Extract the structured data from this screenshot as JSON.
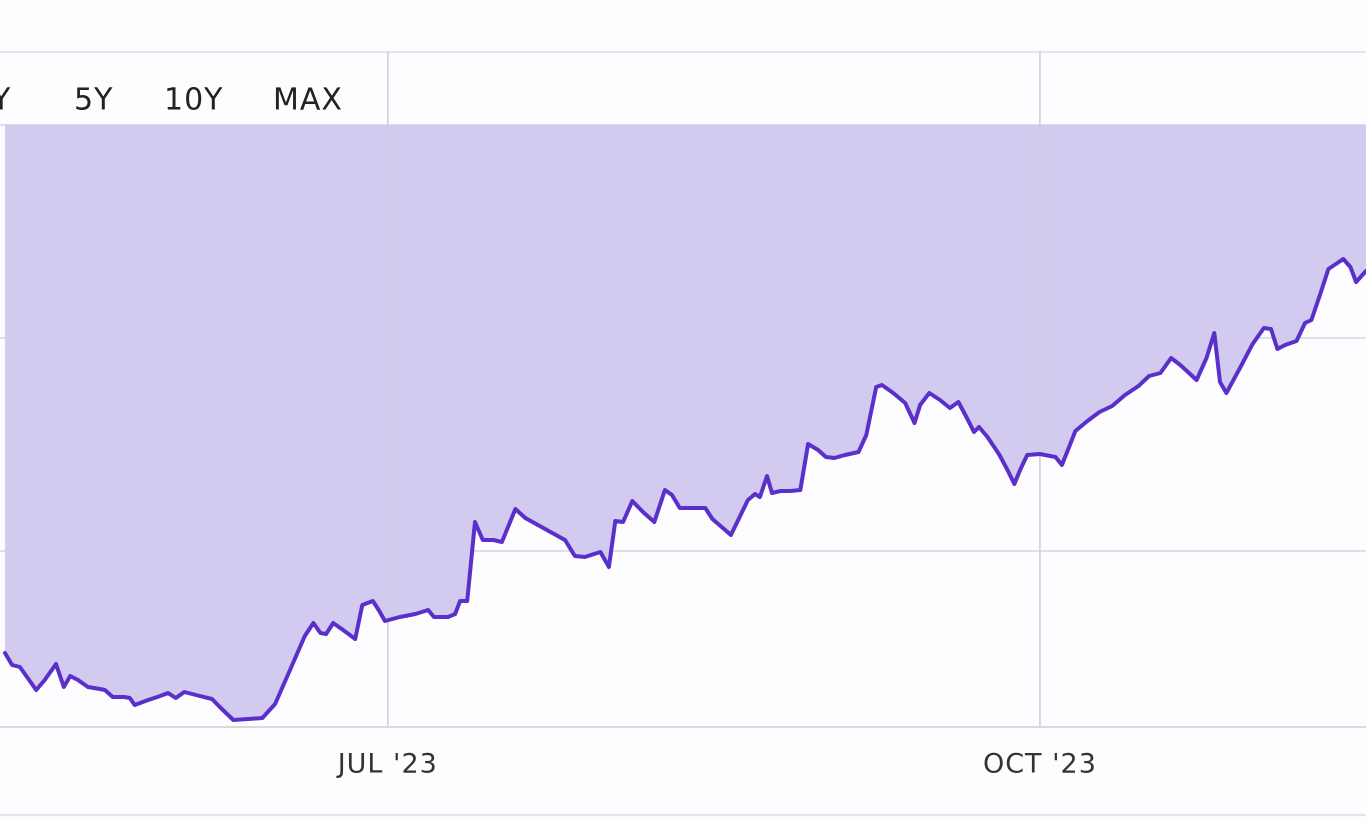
{
  "chart_data": {
    "type": "area-line",
    "range_buttons": [
      "Y",
      "5Y",
      "10Y",
      "MAX"
    ],
    "color": "#5b2fc9",
    "fill_color": "#d3caf0",
    "xlim": [
      0,
      192
    ],
    "ylim": [
      0,
      67.5
    ],
    "xticks": [
      {
        "value": 54,
        "label": "JUL '23"
      },
      {
        "value": 146,
        "label": "OCT '23"
      }
    ],
    "grid": true,
    "x": [
      0,
      1.0,
      2.1,
      3.2,
      4.4,
      5.6,
      7.2,
      8.3,
      9.2,
      10.3,
      11.7,
      13.4,
      14.1,
      15.2,
      16.8,
      17.6,
      18.3,
      20.2,
      21.9,
      23.0,
      24.1,
      25.3,
      26.4,
      27.5,
      29.2,
      30.3,
      32.2,
      34.3,
      36.3,
      38.1,
      40.2,
      42.3,
      43.5,
      44.5,
      45.3,
      46.3,
      47.7,
      49.4,
      50.4,
      51.9,
      52.8,
      53.6,
      55.7,
      57.9,
      59.7,
      60.5,
      62.5,
      63.5,
      64.2,
      65.2,
      66.3,
      67.4,
      68.9,
      70.1,
      72.0,
      73.4,
      76.2,
      79.0,
      80.4,
      81.8,
      84.0,
      85.2,
      86.1,
      87.2,
      88.5,
      90.0,
      91.6,
      93.1,
      94.1,
      95.2,
      97.4,
      98.8,
      99.8,
      101.6,
      102.4,
      104.8,
      105.8,
      106.5,
      107.5,
      108.2,
      109.4,
      110.8,
      112.2,
      113.3,
      114.7,
      115.8,
      117.0,
      118.5,
      120.4,
      121.5,
      122.9,
      123.7,
      125.3,
      127.0,
      128.3,
      129.1,
      130.4,
      131.9,
      133.3,
      134.5,
      135.7,
      136.7,
      137.4,
      138.6,
      140.3,
      141.5,
      142.4,
      143.2,
      144.2,
      146.0,
      148.2,
      149.1,
      150.0,
      151.0,
      152.7,
      154.4,
      156.2,
      158.0,
      159.9,
      161.4,
      163.0,
      164.5,
      165.8,
      168.1,
      169.5,
      170.6,
      171.4,
      172.3,
      174.3,
      176.0,
      177.6,
      178.6,
      179.5,
      180.6,
      182.2,
      183.4,
      184.3,
      185.6,
      186.7,
      188.8,
      189.8,
      190.6,
      192.0
    ],
    "values": [
      7.4,
      6.2,
      6.0,
      4.9,
      3.7,
      4.7,
      6.3,
      4.0,
      5.1,
      4.7,
      4.0,
      3.8,
      3.7,
      3.0,
      3.0,
      2.9,
      2.2,
      2.7,
      3.1,
      3.4,
      2.9,
      3.5,
      3.3,
      3.1,
      2.8,
      2.0,
      0.7,
      0.8,
      0.9,
      2.3,
      5.7,
      9.1,
      10.4,
      9.4,
      9.3,
      10.4,
      9.7,
      8.8,
      12.2,
      12.6,
      11.6,
      10.6,
      11.0,
      11.3,
      11.7,
      11.0,
      11.0,
      11.3,
      12.6,
      12.6,
      20.5,
      18.7,
      18.7,
      18.5,
      21.8,
      20.9,
      19.8,
      18.7,
      17.1,
      17.0,
      17.5,
      16.0,
      20.6,
      20.5,
      22.6,
      21.5,
      20.5,
      23.7,
      23.2,
      21.9,
      21.9,
      21.9,
      20.8,
      19.7,
      19.2,
      22.7,
      23.3,
      23.0,
      25.1,
      23.4,
      23.6,
      23.6,
      23.7,
      28.3,
      27.7,
      27.0,
      26.9,
      27.2,
      27.5,
      29.2,
      34.0,
      34.2,
      33.4,
      32.4,
      30.4,
      32.2,
      33.4,
      32.7,
      31.9,
      32.5,
      30.9,
      29.5,
      30.0,
      29.0,
      27.2,
      25.6,
      24.3,
      25.7,
      27.2,
      27.3,
      27.0,
      26.2,
      27.8,
      29.6,
      30.6,
      31.5,
      32.1,
      33.2,
      34.1,
      35.1,
      35.4,
      36.9,
      36.2,
      34.7,
      36.9,
      39.4,
      34.5,
      33.4,
      36.0,
      38.3,
      39.9,
      39.8,
      37.8,
      38.2,
      38.6,
      40.4,
      40.7,
      43.4,
      45.8,
      46.8,
      46.0,
      44.5,
      45.6
    ]
  }
}
